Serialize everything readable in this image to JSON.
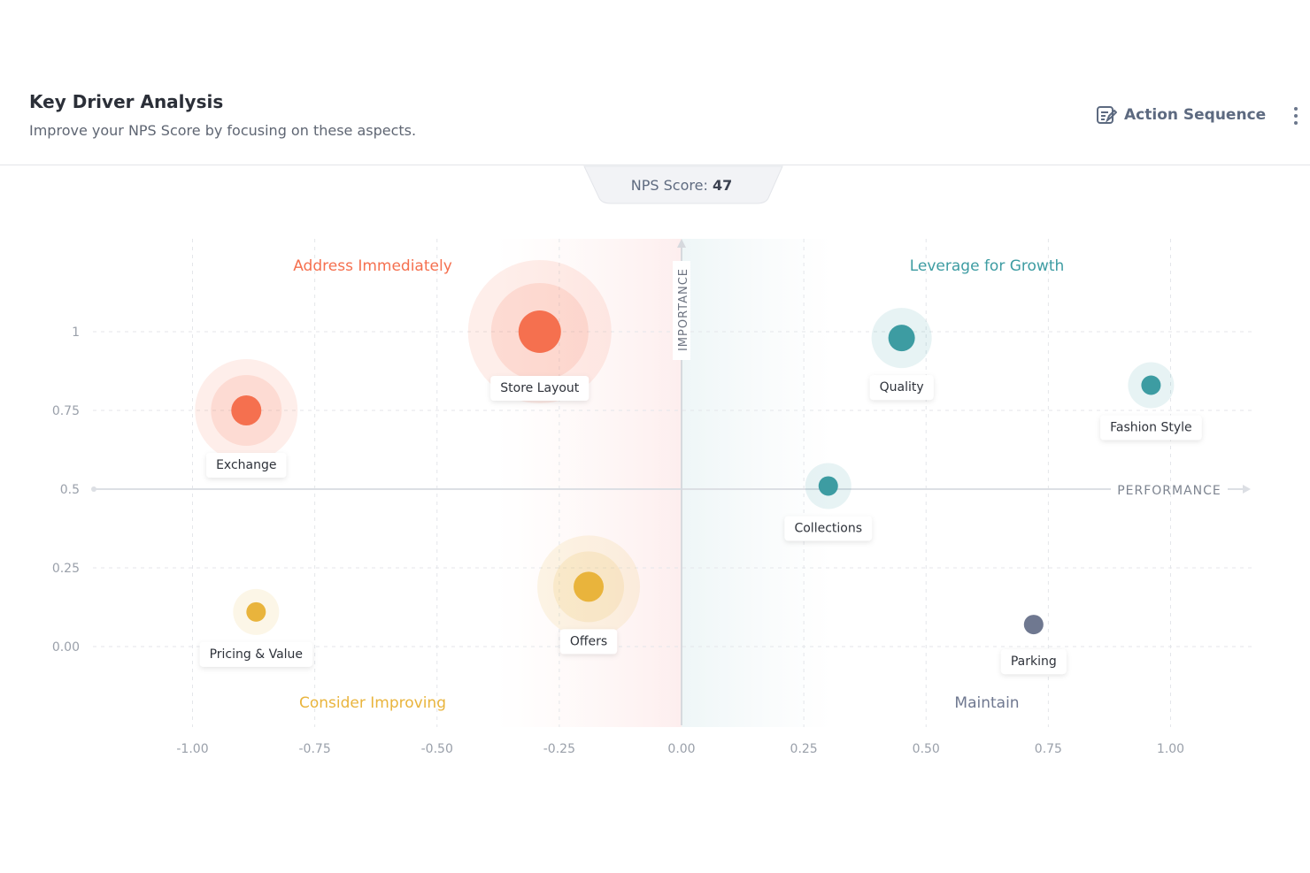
{
  "header": {
    "title": "Key Driver Analysis",
    "subtitle": "Improve your NPS Score by focusing on these aspects.",
    "action_label": "Action Sequence",
    "action_icon": "edit-note-icon",
    "menu_icon": "kebab-menu-icon"
  },
  "nps": {
    "label": "NPS Score:",
    "value": "47"
  },
  "chart_data": {
    "type": "scatter",
    "xlabel": "PERFORMANCE",
    "ylabel": "IMPORTANCE",
    "xlim": [
      -1.0,
      1.0
    ],
    "ylim": [
      0.0,
      1.0
    ],
    "x_ticks": [
      "-1.00",
      "-0.75",
      "-0.50",
      "-0.25",
      "0.00",
      "0.25",
      "0.50",
      "0.75",
      "1.00"
    ],
    "y_ticks": [
      "1",
      "0.75",
      "0.5",
      "0.25",
      "0.00"
    ],
    "grid": true,
    "quadrants": {
      "top_left": "Address Immediately",
      "top_right": "Leverage for Growth",
      "bottom_left": "Consider Improving",
      "bottom_right": "Maintain"
    },
    "colors": {
      "address": "#f5704f",
      "leverage": "#3d9ca2",
      "consider": "#e9b43c",
      "maintain": "#6f7890"
    },
    "points": [
      {
        "label": "Store Layout",
        "x": -0.29,
        "y": 1.0,
        "group": "address",
        "size": 5
      },
      {
        "label": "Exchange",
        "x": -0.89,
        "y": 0.75,
        "group": "address",
        "size": 4
      },
      {
        "label": "Quality",
        "x": 0.45,
        "y": 0.98,
        "group": "leverage",
        "size": 3
      },
      {
        "label": "Fashion Style",
        "x": 0.96,
        "y": 0.83,
        "group": "leverage",
        "size": 2
      },
      {
        "label": "Collections",
        "x": 0.3,
        "y": 0.51,
        "group": "leverage",
        "size": 2
      },
      {
        "label": "Offers",
        "x": -0.19,
        "y": 0.19,
        "group": "consider",
        "size": 4
      },
      {
        "label": "Pricing & Value",
        "x": -0.87,
        "y": 0.11,
        "group": "consider",
        "size": 2
      },
      {
        "label": "Parking",
        "x": 0.72,
        "y": 0.07,
        "group": "maintain",
        "size": 1
      }
    ]
  }
}
